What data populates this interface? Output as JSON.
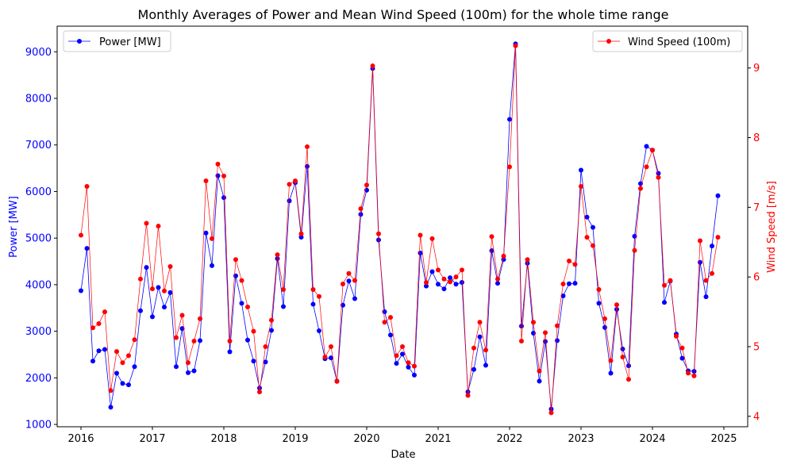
{
  "chart_data": {
    "type": "line",
    "title": "Monthly Averages of Power and Mean Wind Speed (100m) for the whole time range",
    "xlabel": "Date",
    "x_ticks": [
      "2016",
      "2017",
      "2018",
      "2019",
      "2020",
      "2021",
      "2022",
      "2023",
      "2024",
      "2025"
    ],
    "x_start": "2016-01",
    "x_range": [
      "2015-09",
      "2025-05"
    ],
    "y_left": {
      "label": "Power [MW]",
      "color": "#0000ff",
      "ylim": [
        950,
        9550
      ],
      "ticks": [
        "1000",
        "2000",
        "3000",
        "4000",
        "5000",
        "6000",
        "7000",
        "8000",
        "9000"
      ]
    },
    "y_right": {
      "label": "Wind Speed [m/s]",
      "color": "#ff0000",
      "ylim": [
        3.85,
        9.6
      ],
      "ticks": [
        "4",
        "5",
        "6",
        "7",
        "8",
        "9"
      ]
    },
    "grid": false,
    "series": [
      {
        "name": "Power [MW]",
        "axis": "left",
        "color": "#0000ff",
        "legend_position": "top-left",
        "values": [
          3870,
          4780,
          2360,
          2580,
          2610,
          1370,
          2100,
          1880,
          1850,
          2240,
          3440,
          4370,
          3310,
          3940,
          3520,
          3830,
          2240,
          3060,
          2110,
          2150,
          2800,
          5110,
          4410,
          6340,
          5870,
          2560,
          4190,
          3600,
          2810,
          2360,
          1780,
          2340,
          3020,
          4560,
          3530,
          5800,
          6190,
          5020,
          6540,
          3580,
          3010,
          2410,
          2430,
          1930,
          3560,
          4080,
          3700,
          5510,
          6030,
          8640,
          4960,
          3420,
          2920,
          2310,
          2510,
          2230,
          2060,
          4680,
          3970,
          4280,
          4010,
          3910,
          4150,
          4010,
          4050,
          1700,
          2180,
          2880,
          2270,
          4730,
          4030,
          4540,
          7550,
          9170,
          3110,
          4460,
          2960,
          1930,
          2780,
          1330,
          2800,
          3760,
          4020,
          4030,
          6460,
          5450,
          5230,
          3600,
          3080,
          2100,
          3470,
          2620,
          2260,
          5040,
          6170,
          6970,
          6890,
          6390,
          3620,
          4080,
          2940,
          2420,
          2150,
          2140,
          4480,
          3740,
          4830,
          5910
        ]
      },
      {
        "name": "Wind Speed (100m)",
        "axis": "right",
        "color": "#ff0000",
        "legend_position": "top-right",
        "values": [
          6.6,
          7.3,
          5.27,
          5.33,
          5.5,
          4.37,
          4.93,
          4.77,
          4.87,
          5.1,
          5.97,
          6.77,
          5.83,
          6.73,
          5.8,
          6.15,
          5.13,
          5.45,
          4.77,
          5.08,
          5.4,
          7.38,
          6.55,
          7.62,
          7.45,
          5.08,
          6.25,
          5.95,
          5.57,
          5.22,
          4.35,
          5.0,
          5.38,
          6.32,
          5.82,
          7.33,
          7.38,
          6.62,
          7.87,
          5.82,
          5.72,
          4.85,
          5.0,
          4.5,
          5.9,
          6.05,
          5.95,
          6.98,
          7.32,
          9.03,
          6.62,
          5.35,
          5.42,
          4.87,
          5.0,
          4.77,
          4.72,
          6.6,
          5.92,
          6.55,
          6.1,
          5.97,
          5.93,
          6.0,
          6.1,
          4.3,
          4.98,
          5.35,
          4.95,
          6.58,
          5.97,
          6.3,
          7.58,
          9.32,
          5.08,
          6.25,
          5.35,
          4.65,
          5.2,
          4.05,
          5.3,
          5.9,
          6.23,
          6.18,
          7.3,
          6.57,
          6.45,
          5.82,
          5.4,
          4.8,
          5.6,
          4.85,
          4.53,
          6.38,
          7.27,
          7.58,
          7.82,
          7.43,
          5.88,
          5.95,
          5.15,
          4.98,
          4.62,
          4.58,
          6.52,
          5.95,
          6.05,
          6.57
        ]
      }
    ]
  }
}
